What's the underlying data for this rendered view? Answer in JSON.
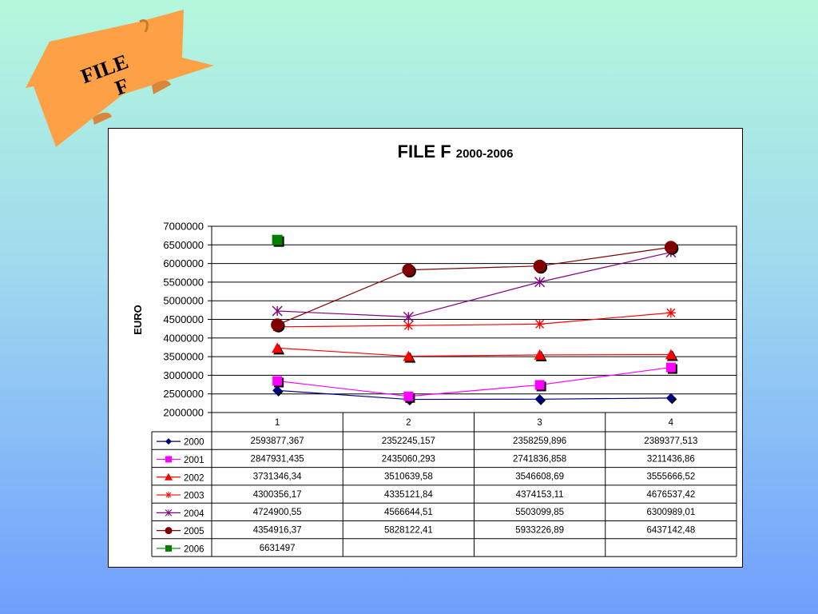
{
  "banner": {
    "line1": "FILE",
    "line2": "F",
    "color": "#fea146"
  },
  "chart_data": {
    "type": "line",
    "title": "FILE F",
    "subtitle": "2000-2006",
    "ylabel": "EURO",
    "xlabel": "",
    "categories": [
      "1",
      "2",
      "3",
      "4"
    ],
    "ylim": [
      2000000,
      7000000
    ],
    "yticks": [
      "7000000",
      "6500000",
      "6000000",
      "5500000",
      "5000000",
      "4500000",
      "4000000",
      "3500000",
      "3000000",
      "2500000",
      "2000000"
    ],
    "grid": true,
    "legend": "data-table",
    "series": [
      {
        "name": "2000",
        "color": "#000080",
        "marker": "diamond",
        "values": [
          2593877.367,
          2352245.157,
          2358259.896,
          2389377.513
        ],
        "labels": [
          "2593877,367",
          "2352245,157",
          "2358259,896",
          "2389377,513"
        ]
      },
      {
        "name": "2001",
        "color": "#ff00ff",
        "marker": "square",
        "values": [
          2847931.435,
          2435060.293,
          2741836.858,
          3211436.86
        ],
        "labels": [
          "2847931,435",
          "2435060,293",
          "2741836,858",
          "3211436,86"
        ]
      },
      {
        "name": "2002",
        "color": "#ff0000",
        "marker": "triangle",
        "values": [
          3731346.34,
          3510639.58,
          3546608.69,
          3555666.52
        ],
        "labels": [
          "3731346,34",
          "3510639,58",
          "3546608,69",
          "3555666,52"
        ]
      },
      {
        "name": "2003",
        "color": "#ff0000",
        "marker": "star",
        "values": [
          4300356.17,
          4335121.84,
          4374153.11,
          4676537.42
        ],
        "labels": [
          "4300356,17",
          "4335121,84",
          "4374153,11",
          "4676537,42"
        ]
      },
      {
        "name": "2004",
        "color": "#800080",
        "marker": "x",
        "values": [
          4724900.55,
          4566644.51,
          5503099.85,
          6300989.01
        ],
        "labels": [
          "4724900,55",
          "4566644,51",
          "5503099,85",
          "6300989,01"
        ]
      },
      {
        "name": "2005",
        "color": "#800000",
        "marker": "circle",
        "values": [
          4354916.37,
          5828122.41,
          5933226.89,
          6437142.48
        ],
        "labels": [
          "4354916,37",
          "5828122,41",
          "5933226,89",
          "6437142,48"
        ]
      },
      {
        "name": "2006",
        "color": "#008000",
        "marker": "square",
        "values": [
          6631497,
          null,
          null,
          null
        ],
        "labels": [
          "6631497",
          "",
          "",
          ""
        ]
      }
    ]
  }
}
